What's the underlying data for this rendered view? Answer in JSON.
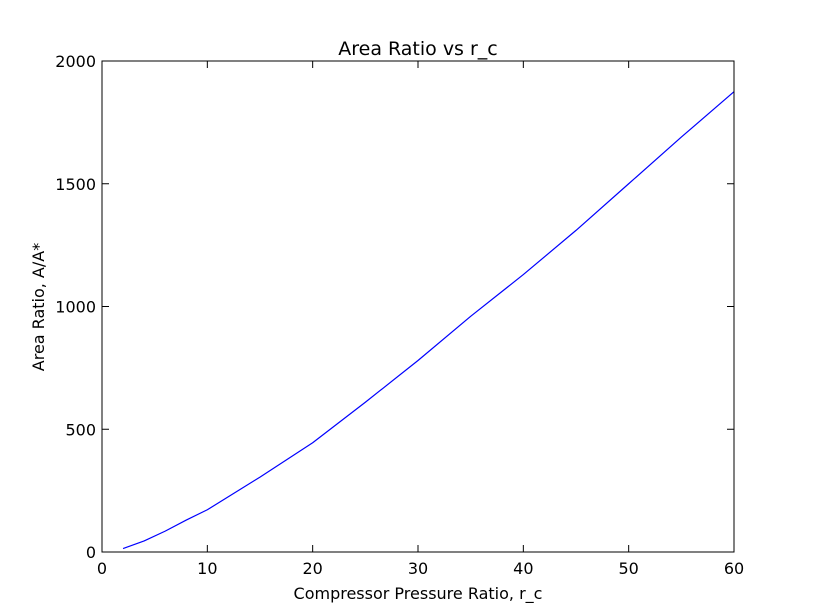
{
  "chart_data": {
    "type": "line",
    "title": "Area Ratio vs r_c",
    "xlabel": "Compressor Pressure Ratio, r_c",
    "ylabel": "Area Ratio, A/A*",
    "xlim": [
      0,
      60
    ],
    "ylim": [
      0,
      2000
    ],
    "xticks": [
      0,
      10,
      20,
      30,
      40,
      50,
      60
    ],
    "yticks": [
      0,
      500,
      1000,
      1500,
      2000
    ],
    "grid": false,
    "series": [
      {
        "color": "#0000ff",
        "x": [
          2,
          4,
          6,
          8,
          10,
          15,
          20,
          25,
          30,
          35,
          40,
          45,
          50,
          55,
          60
        ],
        "y": [
          14,
          45,
          85,
          130,
          172,
          305,
          445,
          610,
          780,
          960,
          1130,
          1310,
          1500,
          1690,
          1875
        ]
      }
    ]
  }
}
